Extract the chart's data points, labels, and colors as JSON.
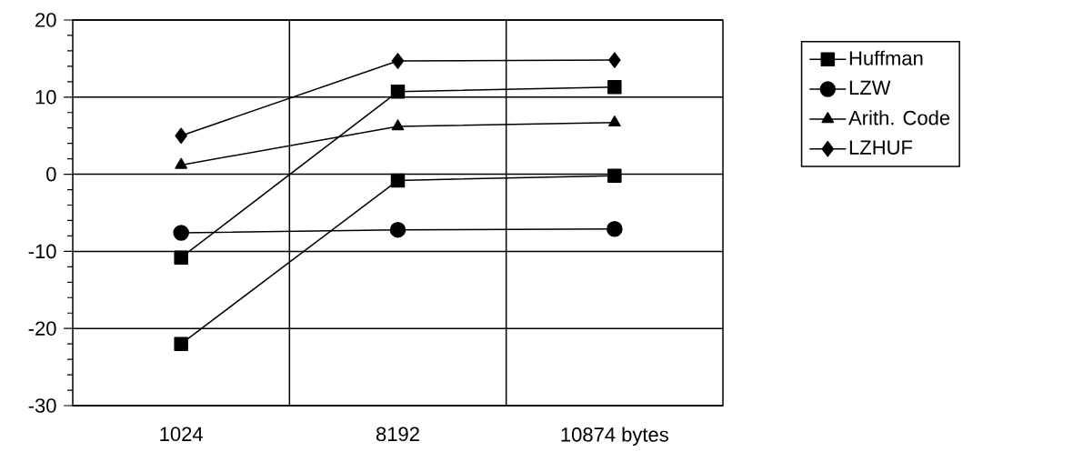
{
  "chart_data": {
    "type": "line",
    "categories": [
      "1024",
      "8192",
      "10874 bytes"
    ],
    "series": [
      {
        "name": "Huffman",
        "color": "#000000",
        "marker": "square",
        "values": [
          -22,
          -0.8,
          -0.2
        ]
      },
      {
        "name": "LZW",
        "color": "#000000",
        "marker": "circle",
        "values": [
          -7.6,
          -7.2,
          -7.1
        ]
      },
      {
        "name": "Arith. Code",
        "color": "#000000",
        "marker": "triangle",
        "values": [
          1.2,
          6.2,
          6.7
        ]
      },
      {
        "name": "LZHUF",
        "color": "#000000",
        "marker": "diamond",
        "values": [
          5.0,
          14.7,
          14.8
        ]
      },
      {
        "color": "#000000",
        "marker": "square",
        "values": [
          -10.8,
          10.7,
          11.3
        ]
      }
    ],
    "ylim": [
      -30,
      20
    ],
    "yticks": [
      -30,
      -20,
      -10,
      0,
      10,
      20
    ],
    "grid": true,
    "legend": "right",
    "line_style": "solid"
  }
}
